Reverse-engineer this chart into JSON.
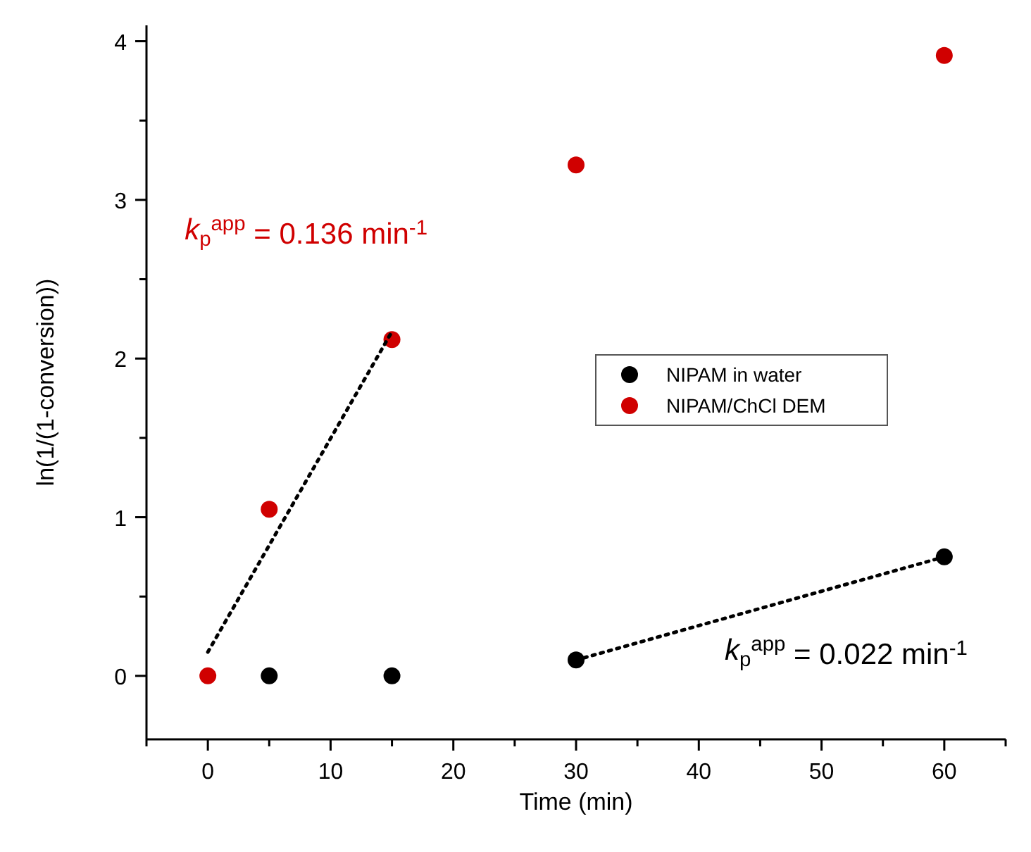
{
  "chart_data": {
    "type": "scatter",
    "xlabel": "Time (min)",
    "ylabel": "ln(1/(1-conversion))",
    "xlim": [
      -5,
      65
    ],
    "ylim": [
      -0.4,
      4.1
    ],
    "xticks": [
      {
        "value": -5,
        "label": null
      },
      0,
      {
        "value": 5,
        "label": null
      },
      10,
      {
        "value": 15,
        "label": null
      },
      20,
      {
        "value": 25,
        "label": null
      },
      30,
      {
        "value": 35,
        "label": null
      },
      40,
      {
        "value": 45,
        "label": null
      },
      50,
      {
        "value": 55,
        "label": null
      },
      60,
      {
        "value": 65,
        "label": null
      }
    ],
    "yticks": [
      0,
      {
        "value": 0.5,
        "label": null
      },
      1,
      {
        "value": 1.5,
        "label": null
      },
      2,
      {
        "value": 2.5,
        "label": null
      },
      3,
      {
        "value": 3.5,
        "label": null
      },
      4
    ],
    "grid": false,
    "legend": "right",
    "marker": "circle",
    "series": [
      {
        "name": "NIPAM in water",
        "color": "#000000",
        "x": [
          5,
          15,
          30,
          60
        ],
        "values": [
          0,
          0,
          0.1,
          0.75
        ]
      },
      {
        "name": "NIPAM/ChCl DEM",
        "color": "#d00000",
        "x": [
          0,
          5,
          15,
          30,
          60
        ],
        "values": [
          0,
          1.05,
          2.12,
          3.22,
          3.91
        ]
      },
      {
        "type": "line",
        "color": "#000000",
        "line_style": "dotted",
        "marker": "none",
        "x": [
          0,
          15
        ],
        "values": [
          0.15,
          2.17
        ]
      },
      {
        "type": "line",
        "color": "#000000",
        "line_style": "dotted",
        "marker": "none",
        "x": [
          30,
          60
        ],
        "values": [
          0.1,
          0.75
        ]
      }
    ],
    "annotations": [
      "k$_{p}$$^{app}$ = 0.136 min$^{-1}$",
      "k$_{p}$$^{app}$ = 0.022 min$^{-1}$"
    ]
  }
}
